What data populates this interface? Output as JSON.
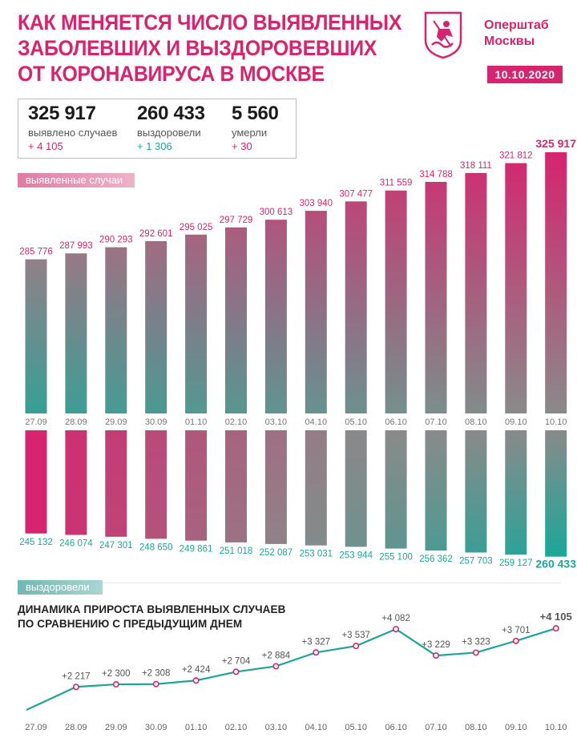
{
  "header": {
    "title_lines": [
      "КАК МЕНЯЕТСЯ ЧИСЛО ВЫЯВЛЕННЫХ",
      "ЗАБОЛЕВШИХ И ВЫЗДОРОВЕВШИХ",
      "ОТ КОРОНАВИРУСА В МОСКВЕ"
    ],
    "brand_line1": "Оперштаб",
    "brand_line2": "Москвы",
    "date": "10.10.2020",
    "logo_icon": "moscow-coat-of-arms-icon"
  },
  "summary": {
    "cases": {
      "value": "325 917",
      "label": "выявлено случаев",
      "delta": "+ 4 105"
    },
    "recovered": {
      "value": "260 433",
      "label": "выздоровели",
      "delta": "+ 1 306"
    },
    "deaths": {
      "value": "5 560",
      "label": "умерли",
      "delta": "+ 30"
    }
  },
  "sections": {
    "cases_label": "выявленные случаи",
    "recovered_label": "выздоровели",
    "line_title_1": "ДИНАМИКА ПРИРОСТА ВЫЯВЛЕННЫХ СЛУЧАЕВ",
    "line_title_2": "ПО СРАВНЕНИЮ С ПРЕДЫДУЩИМ ДНЕМ"
  },
  "colors": {
    "pink": "#d6246e",
    "teal": "#1aa79a",
    "gray": "#8a8a8a"
  },
  "chart_data": [
    {
      "type": "bar",
      "categories": [
        "27.09",
        "28.09",
        "29.09",
        "30.09",
        "01.10",
        "02.10",
        "03.10",
        "04.10",
        "05.10",
        "06.10",
        "07.10",
        "08.10",
        "09.10",
        "10.10"
      ],
      "values": [
        285776,
        287993,
        290293,
        292601,
        295025,
        297729,
        300613,
        303940,
        307477,
        311559,
        314788,
        318111,
        321812,
        325917
      ],
      "labels": [
        "285 776",
        "287 993",
        "290 293",
        "292 601",
        "295 025",
        "297 729",
        "300 613",
        "303 940",
        "307 477",
        "311 559",
        "314 788",
        "318 111",
        "321 812",
        "325 917"
      ],
      "title": "выявленные случаи"
    },
    {
      "type": "bar",
      "categories": [
        "27.09",
        "28.09",
        "29.09",
        "30.09",
        "01.10",
        "02.10",
        "03.10",
        "04.10",
        "05.10",
        "06.10",
        "07.10",
        "08.10",
        "09.10",
        "10.10"
      ],
      "values": [
        245132,
        246074,
        247301,
        248650,
        249861,
        251018,
        252087,
        253031,
        253944,
        255100,
        256362,
        257703,
        259127,
        260433
      ],
      "labels": [
        "245 132",
        "246 074",
        "247 301",
        "248 650",
        "249 861",
        "251 018",
        "252 087",
        "253 031",
        "253 944",
        "255 100",
        "256 362",
        "257 703",
        "259 127",
        "260 433"
      ],
      "title": "выздоровели"
    },
    {
      "type": "line",
      "categories": [
        "27.09",
        "28.09",
        "29.09",
        "30.09",
        "01.10",
        "02.10",
        "03.10",
        "04.10",
        "05.10",
        "06.10",
        "07.10",
        "08.10",
        "09.10",
        "10.10"
      ],
      "values": [
        null,
        2217,
        2300,
        2308,
        2424,
        2704,
        2884,
        3327,
        3537,
        4082,
        3229,
        3323,
        3701,
        4105
      ],
      "labels": [
        "",
        "+2 217",
        "+2 300",
        "+2 308",
        "+2 424",
        "+2 704",
        "+2 884",
        "+3 327",
        "+3 537",
        "+4 082",
        "+3 229",
        "+3 323",
        "+3 701",
        "+4 105"
      ],
      "title": "ДИНАМИКА ПРИРОСТА ВЫЯВЛЕННЫХ СЛУЧАЕВ ПО СРАВНЕНИЮ С ПРЕДЫДУЩИМ ДНЕМ"
    }
  ]
}
